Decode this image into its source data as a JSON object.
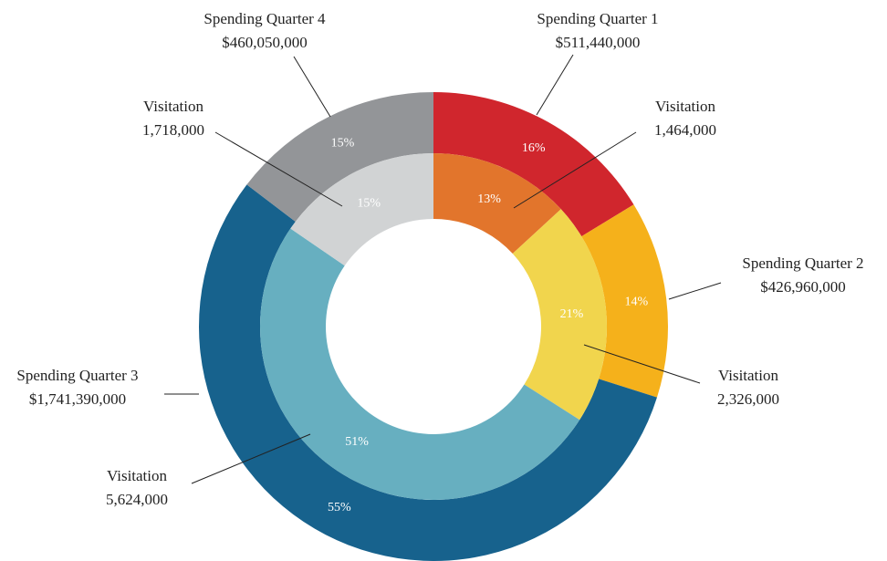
{
  "chart_data": {
    "type": "nested-donut",
    "rings": [
      {
        "categories": [
          "Spending Quarter 1",
          "Spending Quarter 2",
          "Spending Quarter 3",
          "Spending Quarter 4"
        ],
        "values": [
          16,
          14,
          55,
          15
        ],
        "value_labels": [
          "16%",
          "14%",
          "55%",
          "15%"
        ],
        "amounts": [
          511440000,
          426960000,
          1741390000,
          460050000
        ],
        "amount_labels": [
          "$511,440,000",
          "$426,960,000",
          "$1,741,390,000",
          "$460,050,000"
        ],
        "colors": [
          "#d0262d",
          "#f5b11b",
          "#17628d",
          "#939598"
        ]
      },
      {
        "categories": [
          "Visitation",
          "Visitation",
          "Visitation",
          "Visitation"
        ],
        "values": [
          13,
          21,
          51,
          15
        ],
        "value_labels": [
          "13%",
          "21%",
          "51%",
          "15%"
        ],
        "amounts": [
          1464000,
          2326000,
          5624000,
          1718000
        ],
        "amount_labels": [
          "1,464,000",
          "2,326,000",
          "5,624,000",
          "1,718,000"
        ],
        "colors": [
          "#e2752c",
          "#f1d54d",
          "#67afc0",
          "#d1d3d4"
        ]
      }
    ]
  }
}
